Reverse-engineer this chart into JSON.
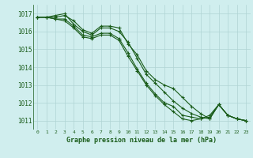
{
  "background_color": "#d0eeee",
  "grid_color": "#b0d4d4",
  "line_color": "#1a5c1a",
  "xlabel": "Graphe pression niveau de la mer (hPa)",
  "ylim": [
    1010.5,
    1017.5
  ],
  "xlim": [
    -0.5,
    23.5
  ],
  "yticks": [
    1011,
    1012,
    1013,
    1014,
    1015,
    1016,
    1017
  ],
  "xticks": [
    0,
    1,
    2,
    3,
    4,
    5,
    6,
    7,
    8,
    9,
    10,
    11,
    12,
    13,
    14,
    15,
    16,
    17,
    18,
    19,
    20,
    21,
    22,
    23
  ],
  "series": [
    [
      1016.8,
      1016.8,
      1016.8,
      1016.9,
      1016.6,
      1016.1,
      1015.9,
      1016.3,
      1016.3,
      1016.2,
      1015.3,
      1014.7,
      1013.8,
      1013.3,
      1013.0,
      1012.8,
      1012.3,
      1011.8,
      1011.4,
      1011.1,
      1011.9,
      1011.3,
      1011.1,
      1011.0
    ],
    [
      1016.8,
      1016.8,
      1016.9,
      1017.0,
      1016.4,
      1016.0,
      1015.8,
      1016.2,
      1016.2,
      1016.0,
      1015.4,
      1014.5,
      1013.6,
      1013.1,
      1012.6,
      1012.1,
      1011.7,
      1011.4,
      1011.2,
      1011.1,
      1011.9,
      1011.3,
      1011.1,
      1011.0
    ],
    [
      1016.8,
      1016.8,
      1016.7,
      1016.7,
      1016.3,
      1015.8,
      1015.7,
      1015.9,
      1015.9,
      1015.6,
      1014.8,
      1013.9,
      1013.1,
      1012.5,
      1012.0,
      1011.8,
      1011.3,
      1011.2,
      1011.1,
      1011.2,
      1011.9,
      1011.3,
      1011.1,
      1011.0
    ],
    [
      1016.8,
      1016.8,
      1016.7,
      1016.6,
      1016.2,
      1015.7,
      1015.6,
      1015.8,
      1015.8,
      1015.5,
      1014.6,
      1013.8,
      1013.0,
      1012.4,
      1011.9,
      1011.5,
      1011.1,
      1011.0,
      1011.1,
      1011.3,
      1011.9,
      1011.3,
      1011.1,
      1011.0
    ]
  ],
  "ylabel_fontsize": 5.5,
  "xlabel_fontsize": 6.0,
  "xtick_fontsize": 4.5,
  "ytick_fontsize": 5.5
}
